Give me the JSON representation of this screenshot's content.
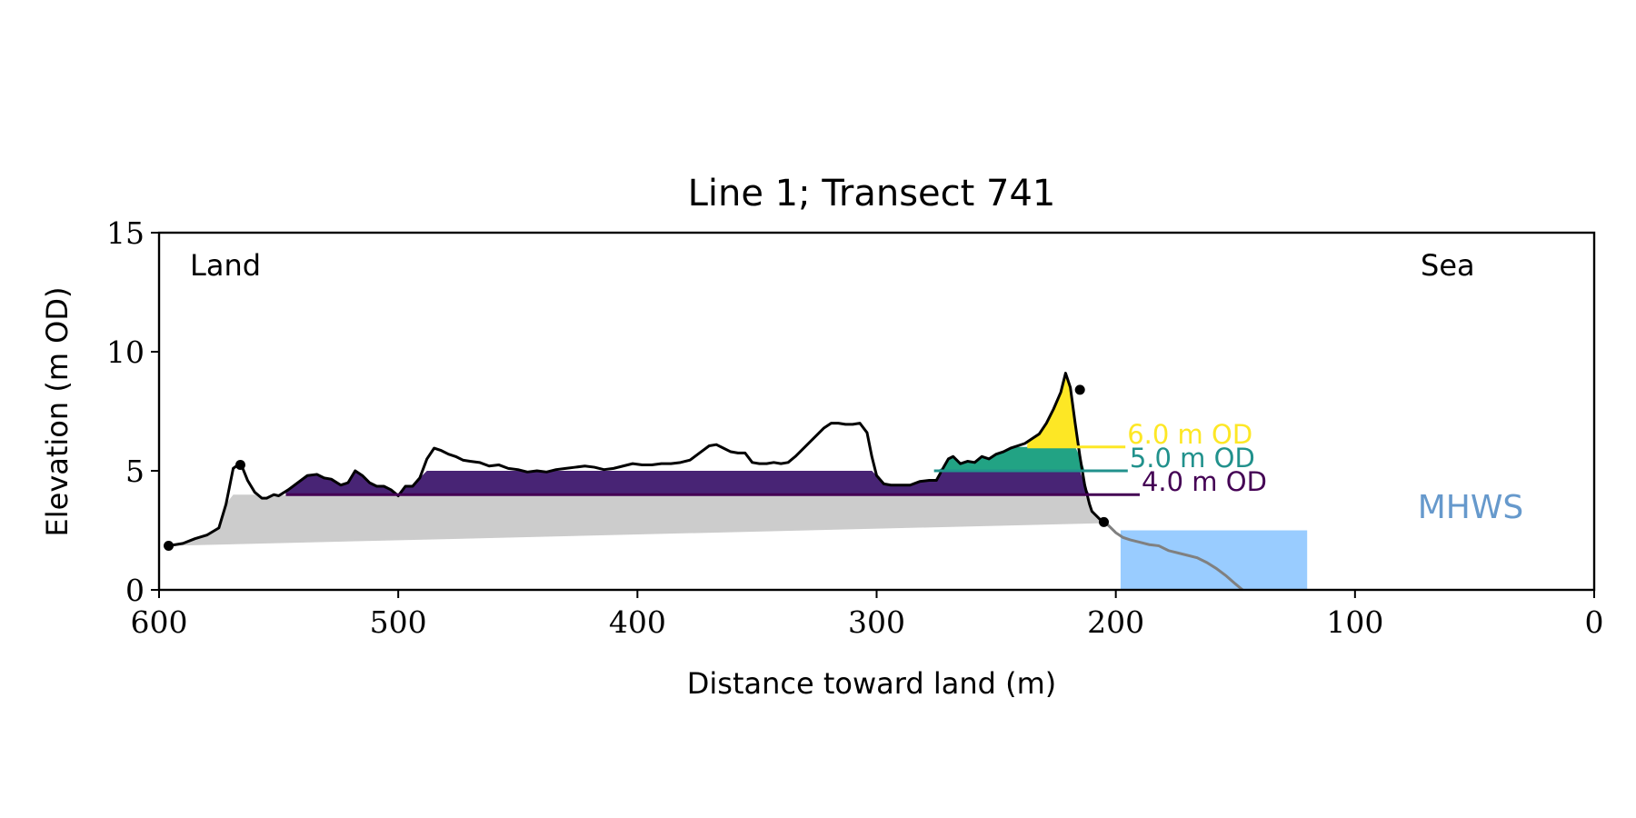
{
  "chart_data": {
    "type": "area",
    "title": "Line 1; Transect 741",
    "xlabel": "Distance toward land (m)",
    "ylabel": "Elevation (m OD)",
    "xlim": [
      600,
      0
    ],
    "ylim": [
      0,
      15
    ],
    "x_ticks": [
      "600",
      "500",
      "400",
      "300",
      "200",
      "100",
      "0"
    ],
    "y_ticks": [
      "0",
      "5",
      "10",
      "15"
    ],
    "x_tick_values": [
      600,
      500,
      400,
      300,
      200,
      100,
      0
    ],
    "y_tick_values": [
      0,
      5,
      10,
      15
    ],
    "corner_labels": {
      "left": "Land",
      "right": "Sea"
    },
    "grid": false,
    "profile": {
      "x": [
        596,
        590,
        585,
        580,
        575,
        572,
        569,
        567,
        565,
        563,
        560,
        557,
        555,
        552,
        550,
        546,
        542,
        538,
        534,
        531,
        528,
        524,
        521,
        518,
        515,
        512,
        509,
        506,
        503,
        500,
        497,
        494,
        491,
        488,
        485,
        482,
        479,
        476,
        473,
        470,
        466,
        462,
        458,
        454,
        450,
        446,
        442,
        438,
        434,
        430,
        426,
        422,
        418,
        414,
        410,
        406,
        402,
        398,
        394,
        390,
        386,
        382,
        378,
        374,
        370,
        367,
        364,
        361,
        358,
        355,
        352,
        349,
        346,
        343,
        340,
        337,
        334,
        331,
        328,
        325,
        322,
        319,
        316,
        313,
        310,
        307,
        304,
        302,
        300,
        297,
        294,
        290,
        286,
        282,
        278,
        275,
        272,
        270,
        268,
        265,
        262,
        259,
        256,
        253,
        250,
        247,
        244,
        241,
        238,
        235,
        232,
        229,
        226,
        223,
        221,
        219,
        217,
        215,
        213,
        211,
        210,
        208,
        206,
        203,
        200,
        197,
        194,
        190,
        186,
        182,
        178,
        174,
        170,
        166,
        162,
        158,
        154,
        150,
        147
      ],
      "y": [
        1.85,
        1.95,
        2.15,
        2.3,
        2.6,
        3.6,
        5.1,
        5.25,
        5.1,
        4.6,
        4.1,
        3.85,
        3.85,
        4.0,
        3.95,
        4.2,
        4.5,
        4.8,
        4.85,
        4.7,
        4.65,
        4.4,
        4.5,
        5.0,
        4.8,
        4.5,
        4.35,
        4.35,
        4.2,
        3.95,
        4.35,
        4.35,
        4.7,
        5.5,
        5.95,
        5.85,
        5.7,
        5.6,
        5.45,
        5.4,
        5.35,
        5.2,
        5.25,
        5.1,
        5.05,
        4.95,
        5.0,
        4.95,
        5.05,
        5.1,
        5.15,
        5.2,
        5.15,
        5.05,
        5.1,
        5.2,
        5.3,
        5.25,
        5.25,
        5.3,
        5.3,
        5.35,
        5.45,
        5.75,
        6.05,
        6.1,
        5.95,
        5.8,
        5.75,
        5.75,
        5.35,
        5.3,
        5.3,
        5.35,
        5.3,
        5.35,
        5.6,
        5.9,
        6.2,
        6.5,
        6.8,
        7.0,
        7.0,
        6.95,
        6.95,
        7.0,
        6.6,
        5.6,
        4.8,
        4.45,
        4.4,
        4.4,
        4.4,
        4.55,
        4.6,
        4.6,
        5.15,
        5.5,
        5.6,
        5.3,
        5.4,
        5.35,
        5.6,
        5.5,
        5.7,
        5.8,
        5.95,
        6.05,
        6.15,
        6.35,
        6.55,
        7.0,
        7.6,
        8.3,
        9.1,
        8.5,
        7.0,
        5.6,
        4.4,
        3.6,
        3.3,
        3.1,
        2.9,
        2.7,
        2.4,
        2.2,
        2.1,
        2.0,
        1.9,
        1.85,
        1.65,
        1.55,
        1.45,
        1.35,
        1.15,
        0.9,
        0.6,
        0.25,
        0.0
      ]
    },
    "baseline": {
      "x": [
        596,
        205
      ],
      "y": [
        1.85,
        2.8
      ]
    },
    "markers": {
      "x": [
        596,
        566,
        215,
        205
      ],
      "y": [
        1.85,
        5.25,
        8.4,
        2.85
      ]
    },
    "bands": [
      {
        "label": "4.0 m OD",
        "level": 4.0,
        "upper": 5.0,
        "x_from": 547,
        "x_to": 207,
        "label_x": 190,
        "color": "#440154",
        "fill": "#482475"
      },
      {
        "label": "5.0 m OD",
        "level": 5.0,
        "upper": 6.0,
        "x_from": 276,
        "x_to": 210,
        "label_x": 195,
        "color": "#21918c",
        "fill": "#22a384"
      },
      {
        "label": "6.0 m OD",
        "level": 6.0,
        "upper": 9.2,
        "x_from": 237,
        "x_to": 211,
        "label_x": 196,
        "color": "#fde725",
        "fill": "#fde725"
      }
    ],
    "mhws": {
      "label": "MHWS",
      "level": 2.5,
      "x_from": 198,
      "x_to": 120,
      "fill": "#99ccff",
      "label_color": "#6699cc"
    },
    "colors": {
      "land_fill": "#cccccc",
      "seaward_profile": "#808080",
      "profile_line": "#000000"
    }
  }
}
